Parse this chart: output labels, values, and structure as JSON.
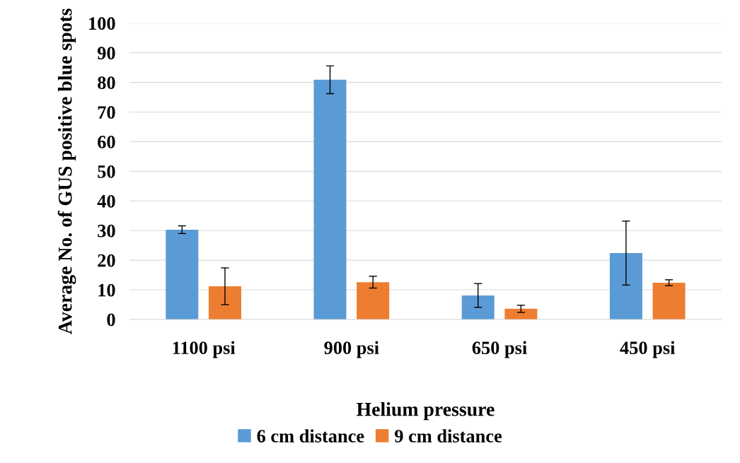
{
  "chart_data": {
    "type": "bar",
    "xlabel": "Helium pressure",
    "ylabel": "Average No. of GUS positive blue spots",
    "categories": [
      "1100 psi",
      "900 psi",
      "650 psi",
      "450 psi"
    ],
    "series": [
      {
        "name": "6 cm distance",
        "color": "#5b9bd5",
        "values": [
          30.3,
          80.9,
          8.1,
          22.4
        ],
        "errors": [
          1.3,
          4.7,
          4.0,
          10.8
        ]
      },
      {
        "name": "9 cm distance",
        "color": "#ed7d31",
        "values": [
          11.2,
          12.6,
          3.6,
          12.4
        ],
        "errors": [
          6.2,
          2.0,
          1.2,
          1.0
        ]
      }
    ],
    "ylim": [
      0,
      100
    ],
    "yticks": [
      0,
      10,
      20,
      30,
      40,
      50,
      60,
      70,
      80,
      90,
      100
    ],
    "grid": "y",
    "legend": "bottom"
  }
}
